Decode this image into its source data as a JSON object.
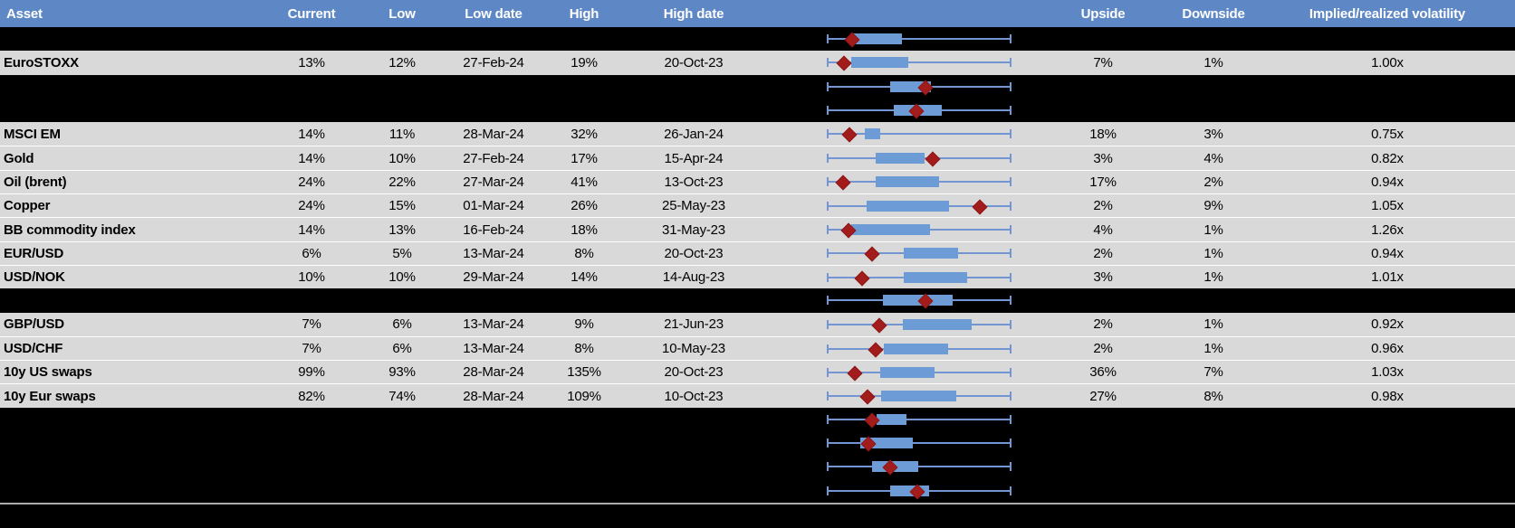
{
  "colors": {
    "header_bg": "#5E88C5",
    "row_gray": "#D9D9D9",
    "row_black": "#000000",
    "box_blue": "#6D9BD5",
    "whisker_blue": "#7396D2",
    "diamond_red": "#A21C1C",
    "divider_gray": "#ABABAB",
    "header_text": "#FFFFFF",
    "body_text": "#000000"
  },
  "table": {
    "headers": {
      "asset": "Asset",
      "current": "Current",
      "low": "Low",
      "low_date": "Low date",
      "high": "High",
      "high_date": "High date",
      "upside": "Upside",
      "downside": "Downside",
      "vol": "Implied/realized volatility"
    },
    "boxplot_note": "each row shows a min-max whisker with interquartile box (blue) and current-value diamond (dark red); geometry normalized 0-1 across whisker span",
    "rows": [
      {
        "type": "spacer",
        "plot": {
          "box": [
            0.127,
            0.407
          ],
          "diamond": 0.137
        }
      },
      {
        "type": "data",
        "asset": "EuroSTOXX",
        "current": "13%",
        "low": "12%",
        "low_date": "27-Feb-24",
        "high": "19%",
        "high_date": "20-Oct-23",
        "upside": "7%",
        "downside": "1%",
        "vol": "1.00x",
        "plot": {
          "box": [
            0.132,
            0.441
          ],
          "diamond": 0.095
        }
      },
      {
        "type": "spacer",
        "plot": {
          "box": [
            0.343,
            0.564
          ],
          "diamond": 0.534
        }
      },
      {
        "type": "spacer",
        "plot": {
          "box": [
            0.363,
            0.623
          ],
          "diamond": 0.485
        }
      },
      {
        "type": "data",
        "asset": "MSCI EM",
        "current": "14%",
        "low": "11%",
        "low_date": "28-Mar-24",
        "high": "32%",
        "high_date": "26-Jan-24",
        "upside": "18%",
        "downside": "3%",
        "vol": "0.75x",
        "plot": {
          "box": [
            0.206,
            0.289
          ],
          "diamond": 0.123
        }
      },
      {
        "type": "data",
        "asset": "Gold",
        "current": "14%",
        "low": "10%",
        "low_date": "27-Feb-24",
        "high": "17%",
        "high_date": "15-Apr-24",
        "upside": "3%",
        "downside": "4%",
        "vol": "0.82x",
        "plot": {
          "box": [
            0.265,
            0.53
          ],
          "diamond": 0.574
        }
      },
      {
        "type": "data",
        "asset": "Oil (brent)",
        "current": "24%",
        "low": "22%",
        "low_date": "27-Mar-24",
        "high": "41%",
        "high_date": "13-Oct-23",
        "upside": "17%",
        "downside": "2%",
        "vol": "0.94x",
        "plot": {
          "box": [
            0.265,
            0.608
          ],
          "diamond": 0.088
        }
      },
      {
        "type": "data",
        "asset": "Copper",
        "current": "24%",
        "low": "15%",
        "low_date": "01-Mar-24",
        "high": "26%",
        "high_date": "25-May-23",
        "upside": "2%",
        "downside": "9%",
        "vol": "1.05x",
        "plot": {
          "box": [
            0.216,
            0.662
          ],
          "diamond": 0.828
        }
      },
      {
        "type": "data",
        "asset": "BB commodity index",
        "current": "14%",
        "low": "13%",
        "low_date": "16-Feb-24",
        "high": "18%",
        "high_date": "31-May-23",
        "upside": "4%",
        "downside": "1%",
        "vol": "1.26x",
        "plot": {
          "box": [
            0.132,
            0.559
          ],
          "diamond": 0.118
        }
      },
      {
        "type": "data",
        "asset": "EUR/USD",
        "current": "6%",
        "low": "5%",
        "low_date": "13-Mar-24",
        "high": "8%",
        "high_date": "20-Oct-23",
        "upside": "2%",
        "downside": "1%",
        "vol": "0.94x",
        "plot": {
          "box": [
            0.417,
            0.711
          ],
          "diamond": 0.245
        }
      },
      {
        "type": "data",
        "asset": "USD/NOK",
        "current": "10%",
        "low": "10%",
        "low_date": "29-Mar-24",
        "high": "14%",
        "high_date": "14-Aug-23",
        "upside": "3%",
        "downside": "1%",
        "vol": "1.01x",
        "plot": {
          "box": [
            0.417,
            0.76
          ],
          "diamond": 0.191
        }
      },
      {
        "type": "spacer",
        "plot": {
          "box": [
            0.304,
            0.681
          ],
          "diamond": 0.534
        }
      },
      {
        "type": "data",
        "asset": "GBP/USD",
        "current": "7%",
        "low": "6%",
        "low_date": "13-Mar-24",
        "high": "9%",
        "high_date": "21-Jun-23",
        "upside": "2%",
        "downside": "1%",
        "vol": "0.92x",
        "plot": {
          "box": [
            0.412,
            0.784
          ],
          "diamond": 0.284
        }
      },
      {
        "type": "data",
        "asset": "USD/CHF",
        "current": "7%",
        "low": "6%",
        "low_date": "13-Mar-24",
        "high": "8%",
        "high_date": "10-May-23",
        "upside": "2%",
        "downside": "1%",
        "vol": "0.96x",
        "plot": {
          "box": [
            0.309,
            0.657
          ],
          "diamond": 0.265
        }
      },
      {
        "type": "data",
        "asset": "10y US swaps",
        "current": "99%",
        "low": "93%",
        "low_date": "28-Mar-24",
        "high": "135%",
        "high_date": "20-Oct-23",
        "upside": "36%",
        "downside": "7%",
        "vol": "1.03x",
        "plot": {
          "box": [
            0.289,
            0.583
          ],
          "diamond": 0.152
        }
      },
      {
        "type": "data",
        "asset": "10y Eur swaps",
        "current": "82%",
        "low": "74%",
        "low_date": "28-Mar-24",
        "high": "109%",
        "high_date": "10-Oct-23",
        "upside": "27%",
        "downside": "8%",
        "vol": "0.98x",
        "plot": {
          "box": [
            0.294,
            0.701
          ],
          "diamond": 0.221
        }
      },
      {
        "type": "spacer",
        "plot": {
          "box": [
            0.27,
            0.431
          ],
          "diamond": 0.245
        }
      },
      {
        "type": "spacer",
        "plot": {
          "box": [
            0.181,
            0.466
          ],
          "diamond": 0.225
        }
      },
      {
        "type": "spacer",
        "plot": {
          "box": [
            0.245,
            0.495
          ],
          "diamond": 0.343
        }
      },
      {
        "type": "spacer",
        "plot": {
          "box": [
            0.343,
            0.554
          ],
          "diamond": 0.49
        }
      }
    ]
  }
}
